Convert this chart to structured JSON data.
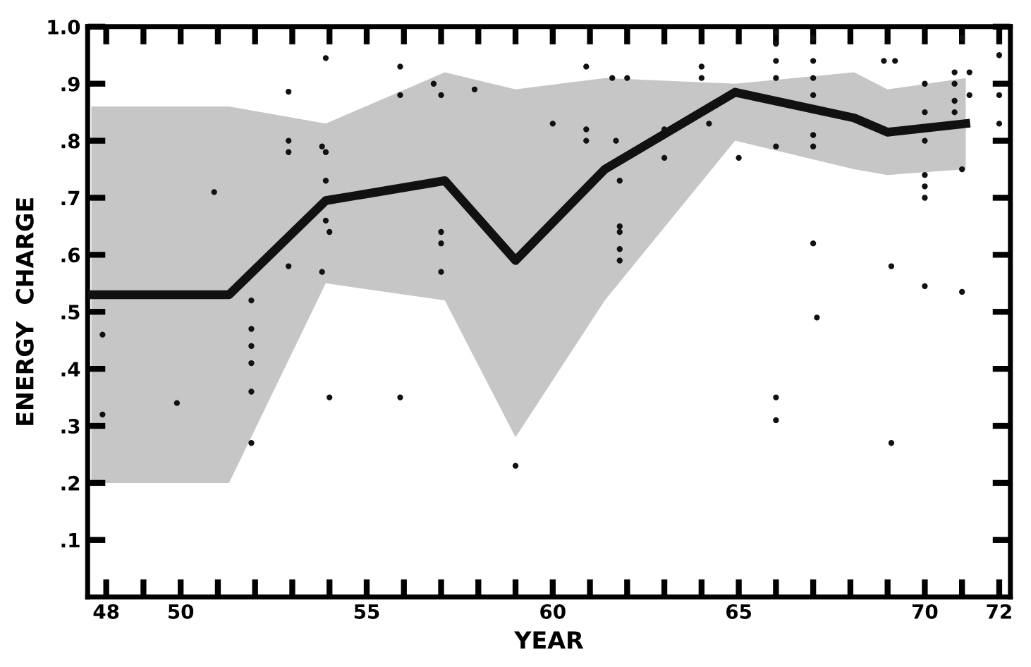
{
  "chart_data": {
    "type": "line",
    "xlabel": "YEAR",
    "ylabel": "ENERGY  CHARGE",
    "xlim": [
      47.5,
      72.3
    ],
    "ylim": [
      0,
      1.0
    ],
    "xticks": [
      48,
      {
        "value": 49,
        "label": null
      },
      50,
      {
        "value": 51,
        "label": null
      },
      {
        "value": 52,
        "label": null
      },
      {
        "value": 53,
        "label": null
      },
      {
        "value": 54,
        "label": null
      },
      55,
      {
        "value": 56,
        "label": null
      },
      {
        "value": 57,
        "label": null
      },
      {
        "value": 58,
        "label": null
      },
      {
        "value": 59,
        "label": null
      },
      60,
      {
        "value": 61,
        "label": null
      },
      {
        "value": 62,
        "label": null
      },
      {
        "value": 63,
        "label": null
      },
      {
        "value": 64,
        "label": null
      },
      65,
      {
        "value": 66,
        "label": null
      },
      {
        "value": 67,
        "label": null
      },
      {
        "value": 68,
        "label": null
      },
      {
        "value": 69,
        "label": null
      },
      70,
      {
        "value": 71,
        "label": null
      },
      72
    ],
    "yticks": [
      {
        "value": 0.1,
        "label": ".1"
      },
      {
        "value": 0.2,
        "label": ".2"
      },
      {
        "value": 0.3,
        "label": ".3"
      },
      {
        "value": 0.4,
        "label": ".4"
      },
      {
        "value": 0.5,
        "label": ".5"
      },
      {
        "value": 0.6,
        "label": ".6"
      },
      {
        "value": 0.7,
        "label": ".7"
      },
      {
        "value": 0.8,
        "label": ".8"
      },
      {
        "value": 0.9,
        "label": ".9"
      },
      {
        "value": 1.0,
        "label": "1.0"
      }
    ],
    "grid": false,
    "legend": false,
    "series": [
      {
        "color": "#111111",
        "x": [
          47.6,
          51.3,
          53.9,
          57.1,
          59.0,
          61.4,
          64.9,
          68.1,
          69.0,
          71.1
        ],
        "values": [
          0.53,
          0.53,
          0.695,
          0.73,
          0.59,
          0.75,
          0.885,
          0.84,
          0.815,
          0.83
        ],
        "lower": [
          0.2,
          0.2,
          0.55,
          0.52,
          0.28,
          0.52,
          0.8,
          0.75,
          0.74,
          0.75
        ],
        "upper": [
          0.86,
          0.86,
          0.83,
          0.92,
          0.89,
          0.91,
          0.9,
          0.92,
          0.89,
          0.91
        ]
      },
      {
        "type": "scatter",
        "color": "#111111",
        "marker": "circle",
        "x": [
          47.9,
          47.9,
          49.9,
          50.9,
          51.9,
          51.9,
          51.9,
          51.9,
          51.9,
          51.9,
          52.9,
          52.9,
          52.9,
          52.9,
          53.9,
          53.8,
          53.9,
          53.9,
          53.9,
          53.8,
          54.0,
          54.0,
          55.9,
          55.9,
          55.9,
          56.8,
          57.0,
          57.0,
          57.0,
          57.0,
          57.9,
          59.0,
          60.9,
          61.6,
          62.0,
          60.0,
          60.9,
          60.9,
          61.7,
          61.8,
          61.8,
          61.8,
          61.8,
          61.8,
          63.0,
          63.0,
          64.0,
          64.0,
          64.2,
          65.0,
          66.0,
          66.0,
          66.0,
          66.0,
          67.0,
          67.0,
          67.0,
          67.0,
          66.0,
          67.0,
          67.0,
          67.0,
          67.1,
          66.0,
          66.0,
          69.1,
          69.1,
          70.0,
          71.0,
          70.0,
          70.0,
          70.0,
          68.9,
          69.2,
          71.0,
          71.0,
          72.0,
          72.0,
          72.0,
          70.0,
          70.0,
          70.0,
          70.8,
          70.8,
          70.8,
          70.8,
          71.2,
          71.2
        ],
        "values": [
          0.46,
          0.32,
          0.34,
          0.71,
          0.27,
          0.52,
          0.47,
          0.44,
          0.41,
          0.36,
          0.886,
          0.8,
          0.78,
          0.58,
          0.945,
          0.79,
          0.78,
          0.73,
          0.66,
          0.57,
          0.64,
          0.35,
          0.93,
          0.88,
          0.35,
          0.9,
          0.88,
          0.64,
          0.62,
          0.57,
          0.89,
          0.23,
          0.93,
          0.91,
          0.91,
          0.83,
          0.82,
          0.8,
          0.8,
          0.73,
          0.65,
          0.64,
          0.61,
          0.59,
          0.82,
          0.77,
          0.93,
          0.91,
          0.83,
          0.77,
          0.99,
          0.97,
          0.94,
          0.91,
          0.98,
          0.94,
          0.91,
          0.88,
          0.79,
          0.81,
          0.79,
          0.62,
          0.49,
          0.35,
          0.31,
          0.58,
          0.27,
          0.545,
          0.535,
          0.74,
          0.72,
          0.7,
          0.94,
          0.94,
          0.75,
          0.98,
          0.95,
          0.88,
          0.83,
          0.9,
          0.85,
          0.8,
          0.92,
          0.9,
          0.87,
          0.85,
          0.92,
          0.88
        ]
      }
    ]
  }
}
